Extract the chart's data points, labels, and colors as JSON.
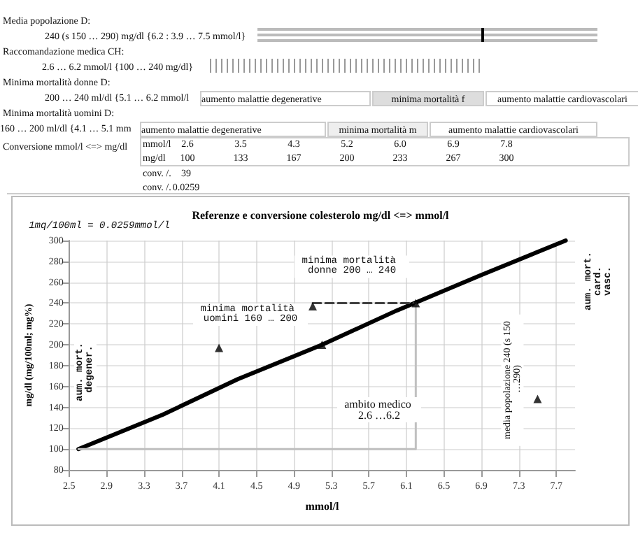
{
  "chart_data": {
    "type": "line",
    "title": "Referenze e conversione colesterolo mg/dl <=> mmol/l",
    "xlabel": "mmol/l",
    "ylabel": "mg/dl (mg/100ml; mg%)",
    "annotations": [
      "Media popolazione D:",
      "240 (s 150 … 290) mg/dl {6.2 : 3.9 … 7.5 mmol/l}",
      "Raccomandazione medica CH:",
      "2.6 … 6.2 mmol/l {100 … 240 mg/dl}",
      "Minima mortalità donne D:",
      "200 … 240 ml/dl {5.1 … 6.2 mmol/l",
      "aumento malattie degenerative",
      "minima mortalità f",
      "aumento malattie cardiovascolari",
      "Minima mortalità uomini D:",
      "160 … 200 ml/dl {4.1 … 5.1 mm",
      "aumento malattie degenerative",
      "minima mortalità m",
      "aumento malattie cardiovascolari",
      "Conversione mmol/l <=> mg/dl",
      "mmol/l",
      "mg/dl",
      "conv. /.",
      "39",
      "conv. /.",
      "0.0259",
      "2.6",
      "3.5",
      "4.3",
      "5.2",
      "6.0",
      "6.9",
      "7.8",
      "100",
      "133",
      "167",
      "200",
      "233",
      "267",
      "300",
      "1mq/100ml = 0.0259mmol/l",
      "minima mortalità uomini 160 … 200",
      {
        "text": "minima mortalità donne 200 … 240",
        "x": 5.1,
        "y": 240
      },
      "ambito medico 2.6 …6.2",
      {
        "text": "media popolazione 240 (s 150 …290)",
        "x": 7.5,
        "y": 150
      },
      "aum. mort. degener.",
      "aum. mort. card. vasc."
    ],
    "series": [
      {
        "color": "#000000",
        "x": [
          2.6,
          3.5,
          4.3,
          5.2,
          6.0,
          6.9,
          7.8
        ],
        "values": [
          100,
          133,
          167,
          200,
          233,
          267,
          300
        ]
      },
      {
        "type": "line",
        "color": "#c0c0c0",
        "x": [
          2.6,
          6.2,
          6.2
        ],
        "values": [
          100,
          100,
          240
        ]
      },
      {
        "type": "line",
        "color": "#404040",
        "line_style": "dashed",
        "x": [
          5.1,
          6.2
        ],
        "values": [
          240,
          240
        ]
      },
      {
        "type": "scatter",
        "color": "#000000",
        "marker": "triangle",
        "x": [
          4.1,
          5.2,
          5.1,
          6.2,
          7.5
        ],
        "values": [
          197,
          200,
          237,
          240,
          148
        ]
      }
    ],
    "xlim": [
      2.5,
      7.9
    ],
    "xticks": [
      2.5,
      2.9,
      3.3,
      3.7,
      4.1,
      4.5,
      4.9,
      5.3,
      5.7,
      6.1,
      6.5,
      6.9,
      7.3,
      7.7
    ],
    "ylim": [
      80,
      300
    ],
    "yticks": [
      80,
      100,
      120,
      140,
      160,
      180,
      200,
      220,
      240,
      260,
      280,
      300
    ],
    "grid": true
  }
}
